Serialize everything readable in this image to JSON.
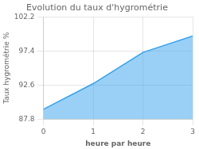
{
  "chart_data": {
    "type": "line",
    "title": "Evolution du taux d'hygrométrie",
    "xlabel": "heure par heure",
    "ylabel": "Taux hygrométrie %",
    "x": [
      0,
      1,
      2,
      3
    ],
    "values": [
      89.2,
      92.8,
      97.2,
      99.5
    ],
    "xlim": [
      0,
      3
    ],
    "ylim": [
      87.8,
      102.2
    ],
    "xticks": [
      0,
      1,
      2,
      3
    ],
    "yticks": [
      87.8,
      92.6,
      97.4,
      102.2
    ],
    "grid": true
  }
}
